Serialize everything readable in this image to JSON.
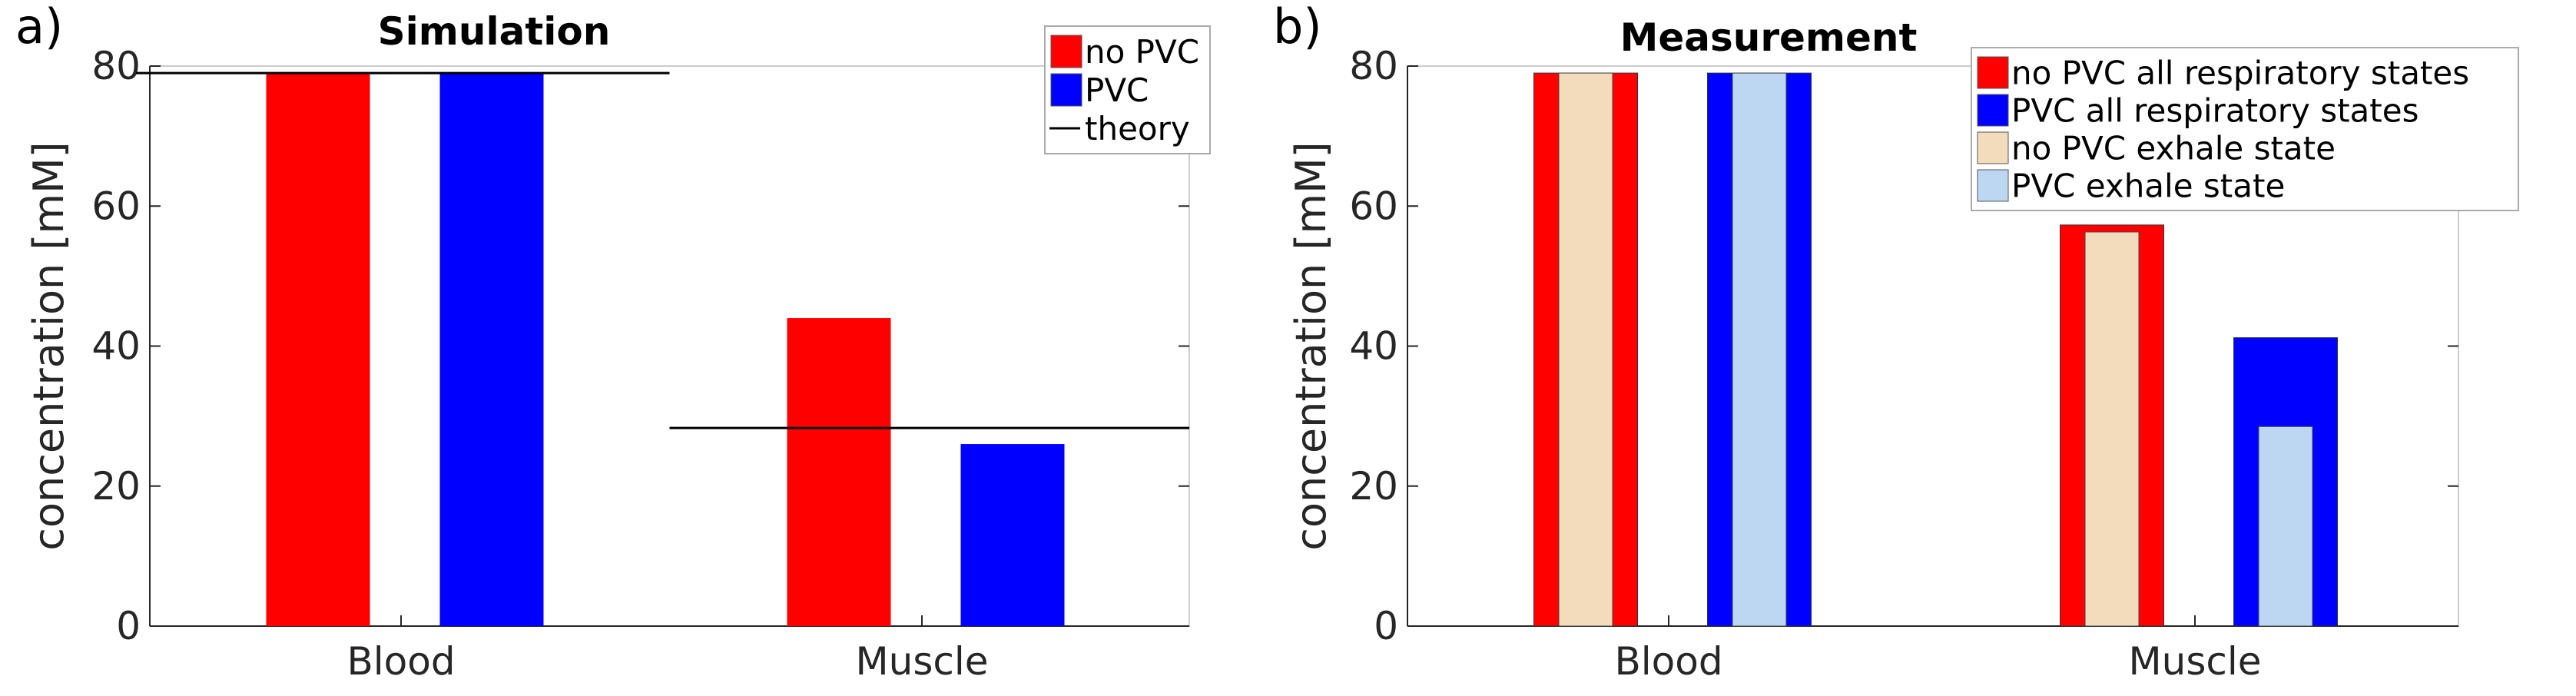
{
  "chart_data": [
    {
      "panel_label": "a)",
      "type": "bar",
      "title": "Simulation",
      "xlabel": "",
      "ylabel": "concentration [mM]",
      "categories": [
        "Blood",
        "Muscle"
      ],
      "ylim": [
        0,
        80
      ],
      "yticks": [
        "0",
        "20",
        "40",
        "60",
        "80"
      ],
      "series": [
        {
          "name": "no PVC",
          "color": "#ff0000",
          "values": [
            79,
            44
          ]
        },
        {
          "name": "PVC",
          "color": "#0000ff",
          "values": [
            79,
            26
          ]
        }
      ],
      "theory": {
        "name": "theory",
        "color": "#000000",
        "values": [
          79,
          28.3
        ]
      },
      "legend_position": "top-right"
    },
    {
      "panel_label": "b)",
      "type": "bar",
      "title": "Measurement",
      "xlabel": "",
      "ylabel": "concentration [mM]",
      "categories": [
        "Blood",
        "Muscle"
      ],
      "ylim": [
        0,
        80
      ],
      "yticks": [
        "0",
        "20",
        "40",
        "60",
        "80"
      ],
      "series": [
        {
          "name": "no PVC all respiratory states",
          "color": "#ff0000",
          "values": [
            79,
            57.3
          ]
        },
        {
          "name": "PVC all respiratory states",
          "color": "#0000ff",
          "values": [
            79,
            41.2
          ]
        },
        {
          "name": "no PVC exhale state",
          "color": "#f2dcbb",
          "values": [
            79,
            56.3
          ]
        },
        {
          "name": "PVC exhale state",
          "color": "#bdd7f2",
          "values": [
            79,
            28.5
          ]
        }
      ],
      "legend_position": "top-right"
    }
  ]
}
